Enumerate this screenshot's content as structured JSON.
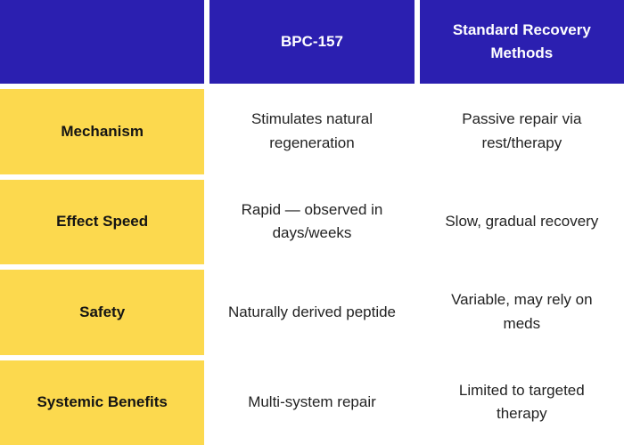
{
  "title": "BPC-157 vs Standard Recovery Methods comparison table",
  "colors": {
    "header_background": "#2b1fb0",
    "header_text": "#ffffff",
    "row_label_background": "#fcd94e",
    "row_label_text": "#141414",
    "cell_background": "#ffffff",
    "cell_text": "#232323",
    "gap_color": "#ffffff"
  },
  "chart_data": {
    "type": "table",
    "title": "",
    "columns": [
      "",
      "BPC-157",
      "Standard Recovery Methods"
    ],
    "rows": [
      [
        "Mechanism",
        "Stimulates natural regeneration",
        "Passive repair via rest/therapy"
      ],
      [
        "Effect Speed",
        "Rapid — observed in days/weeks",
        "Slow, gradual recovery"
      ],
      [
        "Safety",
        "Naturally derived peptide",
        "Variable, may rely on meds"
      ],
      [
        "Systemic Benefits",
        "Multi-system repair",
        "Limited to targeted therapy"
      ]
    ],
    "layout": {
      "header_row": true,
      "label_column": true,
      "grid_gaps": true,
      "legend": "none"
    }
  }
}
